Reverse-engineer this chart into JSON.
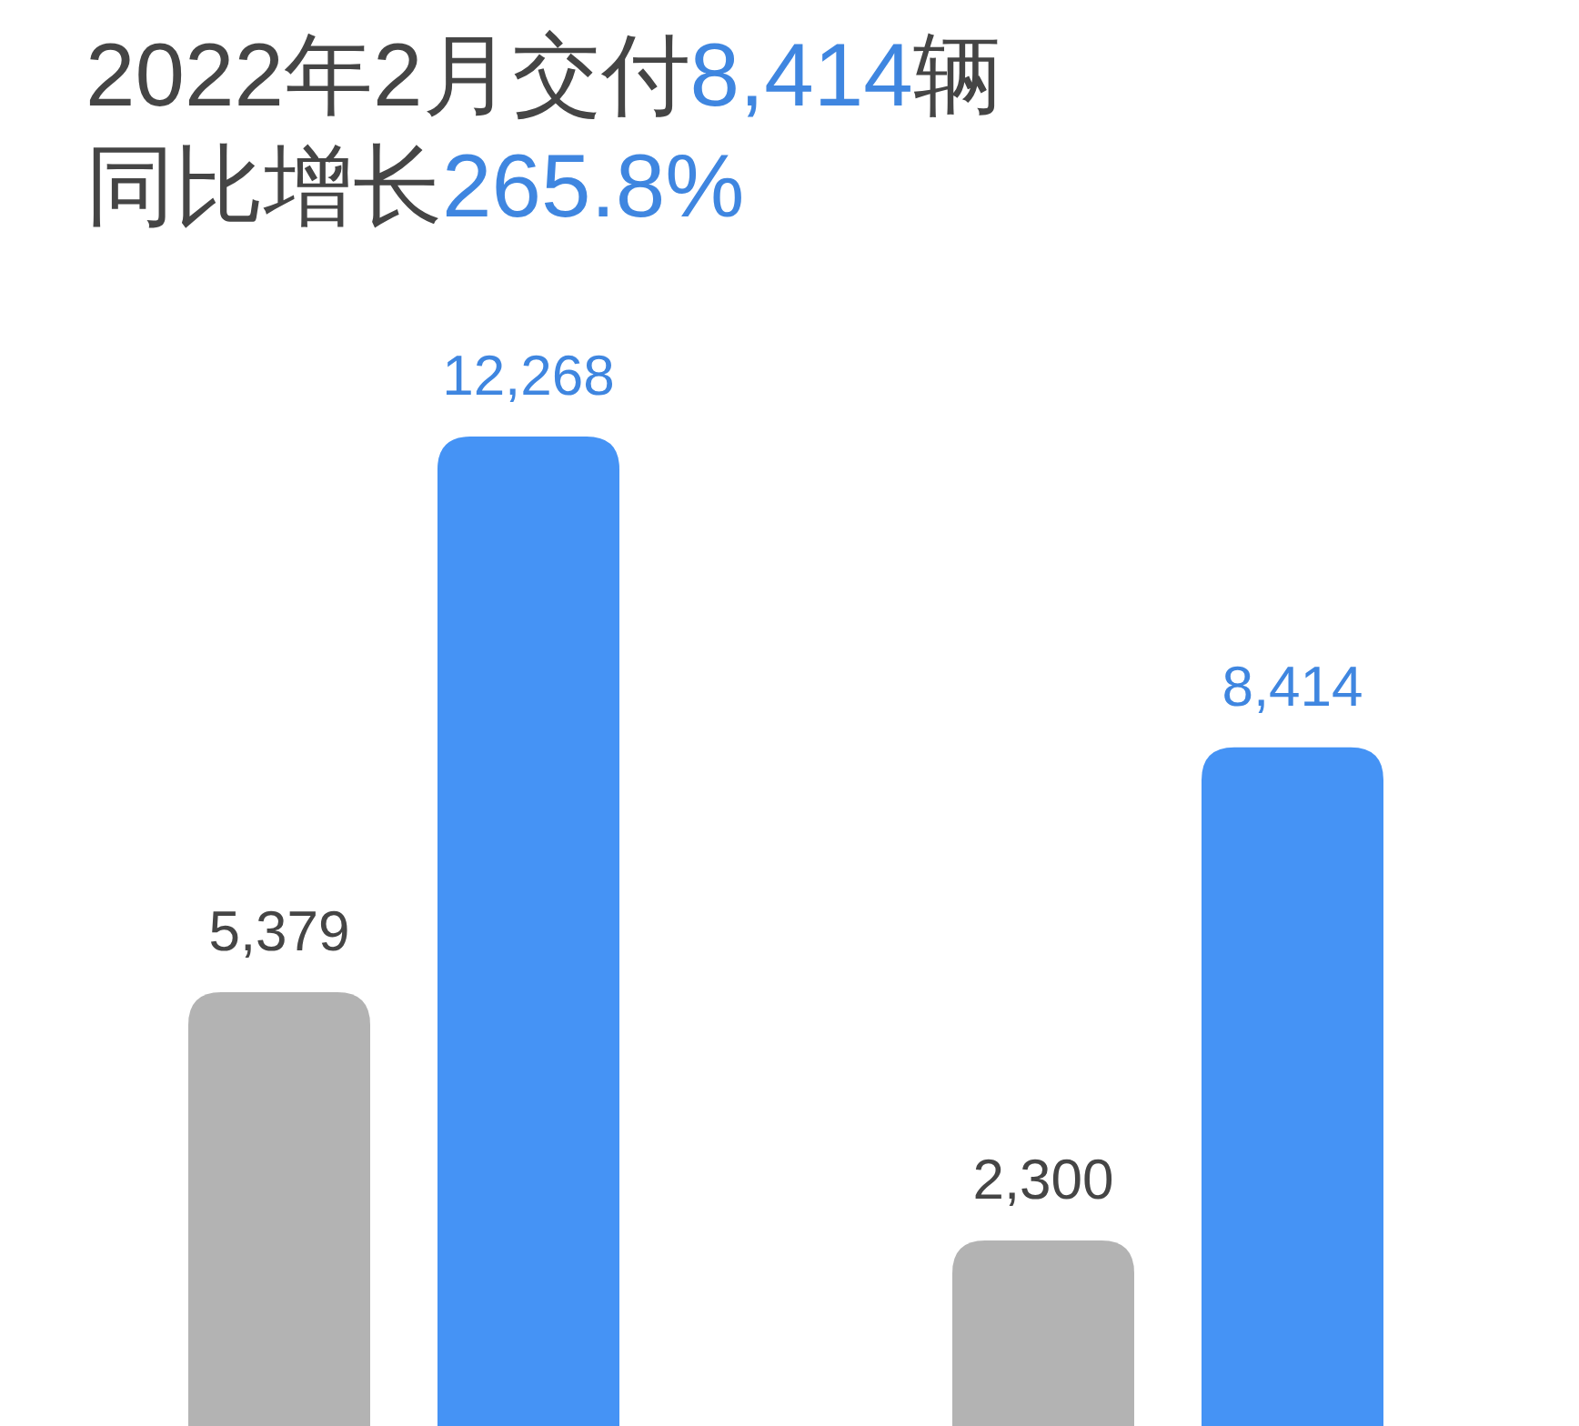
{
  "chart_data": {
    "type": "bar",
    "title": "2022年2月交付8,414辆",
    "subtitle": "同比增长265.8%",
    "categories": [
      null,
      null
    ],
    "series": [
      {
        "color": "#b3b3b3",
        "values": [
          5379,
          2300
        ],
        "value_labels": [
          "5,379",
          "2,300"
        ]
      },
      {
        "color": "#4593f5",
        "values": [
          12268,
          8414
        ],
        "value_labels": [
          "12,268",
          "8,414"
        ]
      }
    ]
  }
}
